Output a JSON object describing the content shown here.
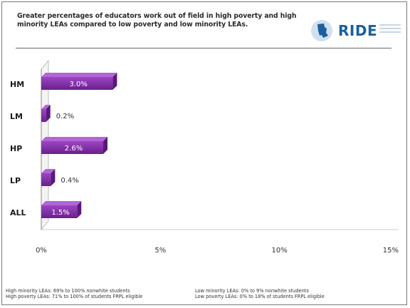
{
  "title": "Greater percentages of educators work out of field in high poverty and high minority LEAs compared to low poverty and low minority LEAs.",
  "logo": {
    "text": "RIDE",
    "icon": "rhode-island-state-icon"
  },
  "chart_data": {
    "type": "bar",
    "orientation": "horizontal",
    "categories": [
      "HM",
      "LM",
      "HP",
      "LP",
      "ALL"
    ],
    "values": [
      3.0,
      0.2,
      2.6,
      0.4,
      1.5
    ],
    "value_labels": [
      "3.0%",
      "0.2%",
      "2.6%",
      "0.4%",
      "1.5%"
    ],
    "label_inside": [
      true,
      false,
      true,
      false,
      true
    ],
    "xlim": [
      0,
      15
    ],
    "xticks": [
      0,
      5,
      10,
      15
    ],
    "xtick_labels": [
      "0%",
      "5%",
      "10%",
      "15%"
    ],
    "grid": false,
    "bar_color": "#7b2aa0",
    "bar_highlight": "#9c45c4"
  },
  "footnotes": [
    {
      "lines": [
        "High minority LEAs: 69% to 100% nonwhite students",
        "High poverty LEAs: 71% to 100% of students FRPL eligible"
      ]
    },
    {
      "lines": [
        "Low minority LEAs: 0% to 9% nonwhite students",
        "Low poverty LEAs: 0% to 18% of students FRPL eligible"
      ]
    }
  ]
}
